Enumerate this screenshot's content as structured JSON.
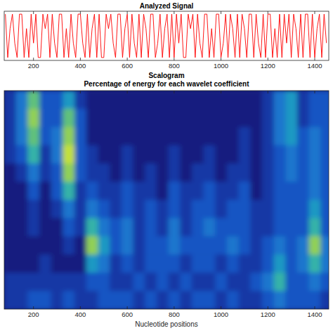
{
  "chart_data": [
    {
      "type": "line",
      "title": "Analyzed Signal",
      "color": "#ff0000",
      "x": [
        80,
        90,
        100,
        110,
        120,
        130,
        140,
        150,
        160,
        170,
        180,
        190,
        200,
        210,
        220,
        230,
        240,
        250,
        260,
        270,
        280,
        290,
        300,
        310,
        320,
        330,
        340,
        350,
        360,
        370,
        380,
        390,
        400,
        410,
        420,
        430,
        440,
        450,
        460,
        470,
        480,
        490,
        500,
        510,
        520,
        530,
        540,
        550,
        560,
        570,
        580,
        590,
        600,
        610,
        620,
        630,
        640,
        650,
        660,
        670,
        680,
        690,
        700,
        710,
        720,
        730,
        740,
        750,
        760,
        770,
        780,
        790,
        800,
        810,
        820,
        830,
        840,
        850,
        860,
        870,
        880,
        890,
        900,
        910,
        920,
        930,
        940,
        950,
        960,
        970,
        980,
        990,
        1000,
        1010,
        1020,
        1030,
        1040,
        1050,
        1060,
        1070,
        1080,
        1090,
        1100,
        1110,
        1120,
        1130,
        1140,
        1150,
        1160,
        1170,
        1180,
        1190,
        1200,
        1210,
        1220,
        1230,
        1240,
        1250,
        1260,
        1270,
        1280,
        1290,
        1300,
        1310,
        1320,
        1330,
        1340,
        1350,
        1360,
        1370,
        1380,
        1390,
        1400,
        1410,
        1420,
        1430,
        1440,
        1450
      ],
      "values": [
        3,
        0,
        2,
        3,
        1,
        0,
        3,
        3,
        0,
        2,
        0,
        3,
        1,
        3,
        0,
        0,
        3,
        2,
        3,
        0,
        3,
        1,
        0,
        3,
        3,
        0,
        2,
        0,
        3,
        1,
        0,
        3,
        3,
        1,
        0,
        3,
        0,
        2,
        3,
        0,
        3,
        0,
        0,
        3,
        2,
        3,
        1,
        0,
        3,
        3,
        0,
        2,
        3,
        0,
        3,
        1,
        0,
        3,
        0,
        3,
        2,
        0,
        3,
        3,
        0,
        1,
        3,
        0,
        2,
        3,
        0,
        3,
        0,
        3,
        1,
        3,
        0,
        0,
        3,
        2,
        3,
        0,
        3,
        1,
        0,
        3,
        3,
        0,
        2,
        0,
        3,
        3,
        0,
        1,
        3,
        0,
        3,
        2,
        0,
        3,
        0,
        3,
        2,
        0,
        3,
        3,
        0,
        3,
        1,
        0,
        3,
        0,
        3,
        3,
        0,
        2,
        0,
        3,
        0,
        3,
        1,
        3,
        0,
        3,
        2,
        0,
        3,
        0,
        3,
        3,
        0,
        3,
        0,
        2,
        3,
        0,
        3,
        1
      ],
      "xlim": [
        75,
        1460
      ],
      "ylim": [
        -0.2,
        3.2
      ],
      "xticks": [
        200,
        400,
        600,
        800,
        1000,
        1200,
        1400
      ],
      "tick_labels": "x"
    },
    {
      "type": "heatmap",
      "title": "Scalogram",
      "subtitle": "Percentage of energy for each wavelet coefficient",
      "x_label": "Nucleotide positions",
      "x": [
        100,
        150,
        200,
        250,
        300,
        350,
        400,
        450,
        500,
        550,
        600,
        650,
        700,
        750,
        800,
        850,
        900,
        950,
        1000,
        1050,
        1100,
        1150,
        1200,
        1250,
        1300,
        1350,
        1400,
        1450
      ],
      "scales": [
        12,
        11,
        10,
        9,
        8,
        7,
        6,
        5,
        4,
        3,
        2,
        1
      ],
      "cells": [
        [
          2,
          4,
          7,
          3,
          3,
          5,
          2,
          1,
          1,
          1,
          1,
          1,
          1,
          1,
          1,
          1,
          1,
          1,
          1,
          1,
          1,
          1,
          2,
          4,
          5,
          2,
          3,
          3
        ],
        [
          2,
          4,
          8,
          3,
          3,
          7,
          3,
          1,
          1,
          1,
          1,
          1,
          1,
          1,
          1,
          1,
          1,
          1,
          1,
          1,
          1,
          1,
          2,
          4,
          5,
          2,
          3,
          3
        ],
        [
          2,
          4,
          7,
          3,
          4,
          8,
          3,
          1,
          1,
          1,
          1,
          1,
          1,
          1,
          1,
          1,
          1,
          1,
          1,
          1,
          2,
          1,
          2,
          4,
          5,
          3,
          4,
          3
        ],
        [
          2,
          3,
          6,
          2,
          4,
          9,
          3,
          2,
          1,
          1,
          2,
          1,
          1,
          1,
          2,
          1,
          1,
          2,
          1,
          1,
          2,
          1,
          2,
          3,
          4,
          3,
          4,
          3
        ],
        [
          1,
          2,
          4,
          2,
          3,
          8,
          3,
          2,
          2,
          1,
          2,
          1,
          2,
          1,
          2,
          1,
          2,
          2,
          1,
          2,
          2,
          1,
          2,
          3,
          4,
          3,
          4,
          3
        ],
        [
          1,
          1,
          3,
          1,
          3,
          6,
          2,
          3,
          2,
          2,
          3,
          2,
          2,
          1,
          3,
          2,
          2,
          3,
          2,
          2,
          3,
          1,
          2,
          3,
          3,
          3,
          4,
          3
        ],
        [
          1,
          1,
          2,
          1,
          2,
          4,
          2,
          4,
          3,
          2,
          3,
          2,
          3,
          2,
          3,
          2,
          3,
          3,
          2,
          3,
          3,
          2,
          2,
          3,
          3,
          3,
          5,
          3
        ],
        [
          1,
          1,
          2,
          1,
          1,
          3,
          2,
          6,
          4,
          3,
          4,
          2,
          3,
          2,
          4,
          2,
          3,
          4,
          3,
          3,
          3,
          2,
          2,
          3,
          3,
          3,
          6,
          3
        ],
        [
          1,
          1,
          1,
          1,
          1,
          2,
          1,
          8,
          5,
          3,
          4,
          2,
          3,
          3,
          4,
          3,
          3,
          3,
          3,
          4,
          3,
          2,
          3,
          4,
          3,
          4,
          8,
          4
        ],
        [
          1,
          1,
          1,
          2,
          1,
          1,
          1,
          5,
          4,
          2,
          3,
          2,
          3,
          3,
          3,
          2,
          3,
          3,
          2,
          3,
          2,
          2,
          3,
          5,
          3,
          4,
          6,
          4
        ],
        [
          2,
          2,
          2,
          2,
          2,
          2,
          2,
          3,
          3,
          2,
          2,
          3,
          2,
          3,
          2,
          3,
          2,
          2,
          3,
          2,
          2,
          3,
          4,
          6,
          3,
          3,
          4,
          3
        ],
        [
          2,
          2,
          3,
          3,
          2,
          3,
          2,
          2,
          3,
          3,
          3,
          2,
          3,
          2,
          3,
          2,
          3,
          3,
          2,
          3,
          2,
          2,
          3,
          4,
          3,
          3,
          3,
          2
        ]
      ],
      "clim": [
        0,
        10
      ],
      "xlim": [
        75,
        1460
      ],
      "ylim": [
        0.5,
        12.5
      ],
      "xticks": [
        200,
        400,
        600,
        800,
        1000,
        1200,
        1400
      ],
      "tick_labels": "x"
    }
  ]
}
